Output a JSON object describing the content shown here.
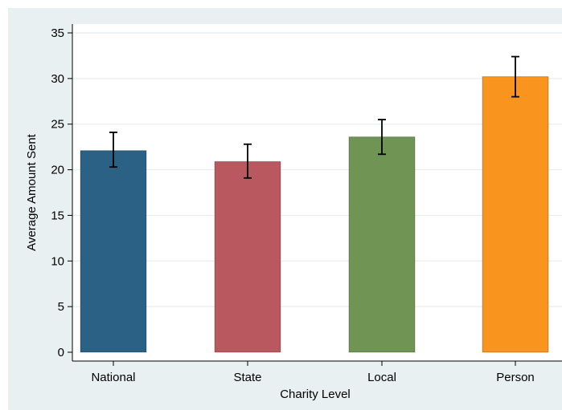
{
  "chart_data": {
    "type": "bar",
    "xlabel": "Charity Level",
    "ylabel": "Average Amount Sent",
    "ylim": [
      0,
      35
    ],
    "yticks": [
      0,
      5,
      10,
      15,
      20,
      25,
      30,
      35
    ],
    "grid": true,
    "categories": [
      "National",
      "State",
      "Local",
      "Person"
    ],
    "values": [
      22.1,
      20.9,
      23.6,
      30.2
    ],
    "error_low": [
      20.3,
      19.1,
      21.7,
      28.0
    ],
    "error_high": [
      24.1,
      22.8,
      25.5,
      32.4
    ],
    "colors": [
      "#2b6184",
      "#b9585e",
      "#6f9453",
      "#f9951f"
    ],
    "background_color": "#e9f0f2"
  }
}
